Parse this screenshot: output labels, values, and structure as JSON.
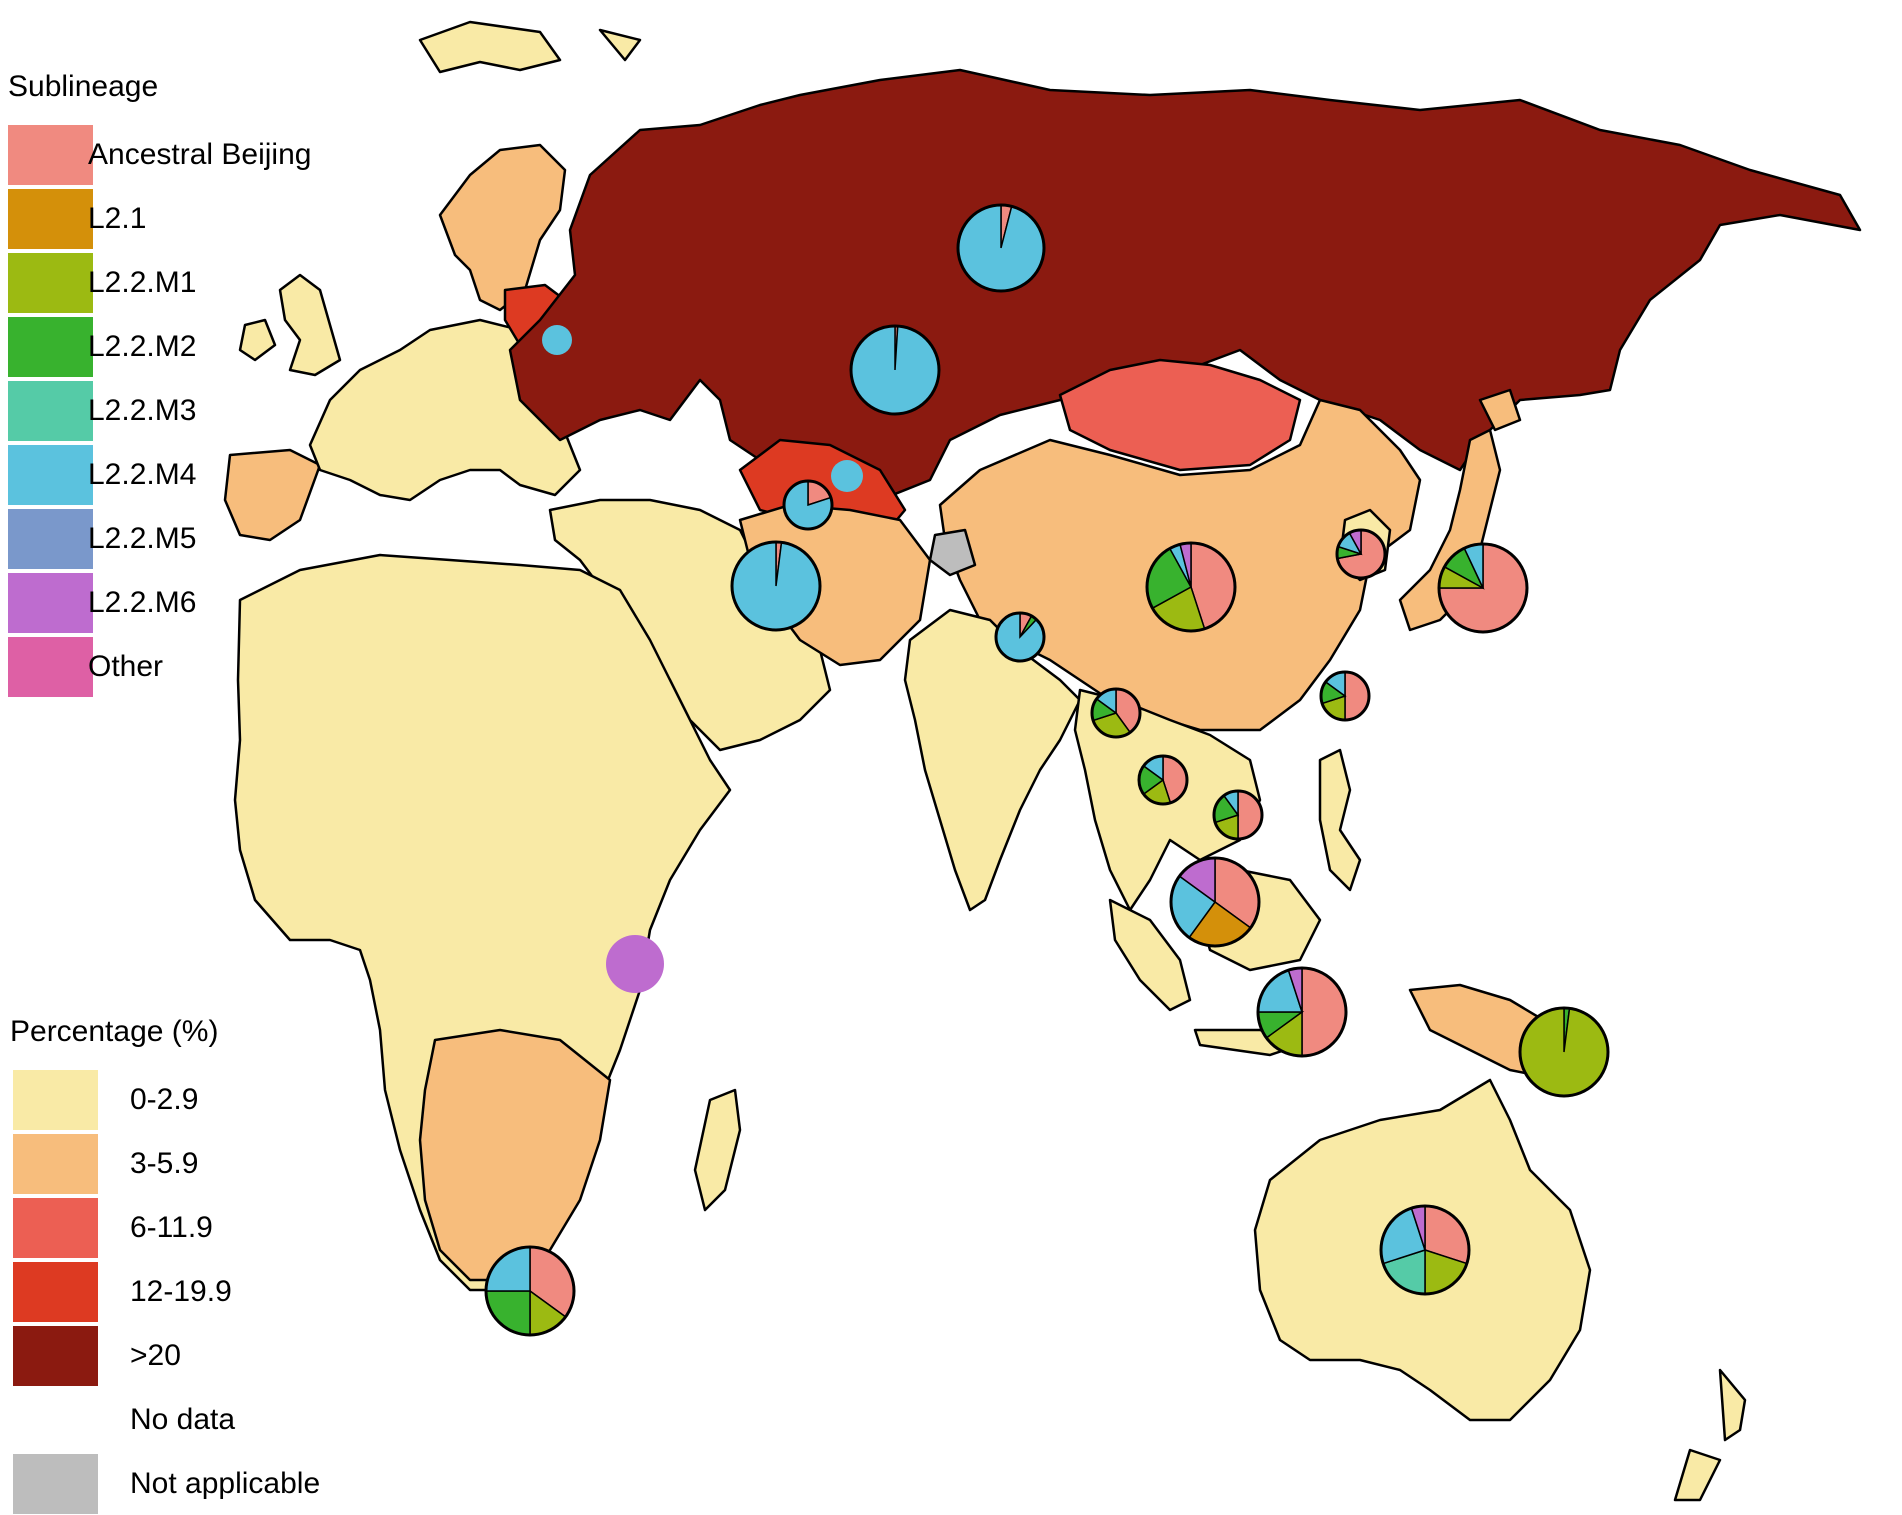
{
  "legend_sublineage": {
    "title": "Sublineage",
    "items": [
      {
        "label": "Ancestral Beijing",
        "color": "#f08a80"
      },
      {
        "label": "L2.1",
        "color": "#d4900a"
      },
      {
        "label": "L2.2.M1",
        "color": "#9cba12"
      },
      {
        "label": "L2.2.M2",
        "color": "#38b22e"
      },
      {
        "label": "L2.2.M3",
        "color": "#55cba7"
      },
      {
        "label": "L2.2.M4",
        "color": "#5bc2de"
      },
      {
        "label": "L2.2.M5",
        "color": "#7a98cb"
      },
      {
        "label": "L2.2.M6",
        "color": "#be6ccf"
      },
      {
        "label": "Other",
        "color": "#de60a5"
      }
    ]
  },
  "legend_percentage": {
    "title": "Percentage (%)",
    "items": [
      {
        "label": "0-2.9",
        "color": "#f9eaa6"
      },
      {
        "label": "3-5.9",
        "color": "#f7bd7c"
      },
      {
        "label": "6-11.9",
        "color": "#ec5f53"
      },
      {
        "label": "12-19.9",
        "color": "#dd3a22"
      },
      {
        "label": ">20",
        "color": "#8b1a10"
      },
      {
        "label": "No data",
        "color": "#ffffff"
      },
      {
        "label": "Not applicable",
        "color": "#bdbdbd"
      }
    ]
  },
  "map_colors": {
    "low": "#f9eaa6",
    "mid": "#f7bd7c",
    "high": "#ec5f53",
    "higher": "#dd3a22",
    "highest": "#8b1a10",
    "not_applicable": "#bdbdbd"
  },
  "pie_charts": [
    {
      "region": "russia",
      "slices": [
        {
          "s": "Ancestral Beijing",
          "v": 4
        },
        {
          "s": "L2.2.M4",
          "v": 96
        }
      ]
    },
    {
      "region": "kazakhstan",
      "slices": [
        {
          "s": "Ancestral Beijing",
          "v": 1
        },
        {
          "s": "L2.2.M4",
          "v": 99
        }
      ]
    },
    {
      "region": "belarus",
      "slices": [
        {
          "s": "L2.2.M4",
          "v": 100
        }
      ]
    },
    {
      "region": "uzbekistan",
      "slices": [
        {
          "s": "L2.2.M4",
          "v": 100
        }
      ]
    },
    {
      "region": "turkmenistan",
      "slices": [
        {
          "s": "Ancestral Beijing",
          "v": 20
        },
        {
          "s": "L2.2.M4",
          "v": 80
        }
      ]
    },
    {
      "region": "iran",
      "slices": [
        {
          "s": "Ancestral Beijing",
          "v": 2
        },
        {
          "s": "L2.2.M4",
          "v": 98
        }
      ]
    },
    {
      "region": "nepal",
      "slices": [
        {
          "s": "Ancestral Beijing",
          "v": 8
        },
        {
          "s": "L2.2.M2",
          "v": 4
        },
        {
          "s": "L2.2.M4",
          "v": 88
        }
      ]
    },
    {
      "region": "china",
      "slices": [
        {
          "s": "Ancestral Beijing",
          "v": 45
        },
        {
          "s": "L2.2.M1",
          "v": 22
        },
        {
          "s": "L2.2.M2",
          "v": 25
        },
        {
          "s": "L2.2.M4",
          "v": 4
        },
        {
          "s": "L2.2.M6",
          "v": 4
        }
      ]
    },
    {
      "region": "korea",
      "slices": [
        {
          "s": "Ancestral Beijing",
          "v": 72
        },
        {
          "s": "L2.2.M2",
          "v": 8
        },
        {
          "s": "L2.2.M4",
          "v": 12
        },
        {
          "s": "L2.2.M6",
          "v": 8
        }
      ]
    },
    {
      "region": "japan",
      "slices": [
        {
          "s": "Ancestral Beijing",
          "v": 75
        },
        {
          "s": "L2.2.M1",
          "v": 8
        },
        {
          "s": "L2.2.M2",
          "v": 10
        },
        {
          "s": "L2.2.M4",
          "v": 7
        }
      ]
    },
    {
      "region": "taiwan",
      "slices": [
        {
          "s": "Ancestral Beijing",
          "v": 50
        },
        {
          "s": "L2.2.M1",
          "v": 20
        },
        {
          "s": "L2.2.M2",
          "v": 15
        },
        {
          "s": "L2.2.M4",
          "v": 15
        }
      ]
    },
    {
      "region": "myanmar",
      "slices": [
        {
          "s": "Ancestral Beijing",
          "v": 40
        },
        {
          "s": "L2.2.M1",
          "v": 30
        },
        {
          "s": "L2.2.M2",
          "v": 15
        },
        {
          "s": "L2.2.M4",
          "v": 15
        }
      ]
    },
    {
      "region": "thailand",
      "slices": [
        {
          "s": "Ancestral Beijing",
          "v": 45
        },
        {
          "s": "L2.2.M1",
          "v": 20
        },
        {
          "s": "L2.2.M2",
          "v": 20
        },
        {
          "s": "L2.2.M4",
          "v": 15
        }
      ]
    },
    {
      "region": "vietnam",
      "slices": [
        {
          "s": "Ancestral Beijing",
          "v": 50
        },
        {
          "s": "L2.2.M1",
          "v": 20
        },
        {
          "s": "L2.2.M2",
          "v": 20
        },
        {
          "s": "L2.2.M4",
          "v": 10
        }
      ]
    },
    {
      "region": "malaysia",
      "slices": [
        {
          "s": "Ancestral Beijing",
          "v": 35
        },
        {
          "s": "L2.1",
          "v": 25
        },
        {
          "s": "L2.2.M4",
          "v": 25
        },
        {
          "s": "L2.2.M6",
          "v": 15
        }
      ]
    },
    {
      "region": "indonesia",
      "slices": [
        {
          "s": "Ancestral Beijing",
          "v": 50
        },
        {
          "s": "L2.2.M1",
          "v": 15
        },
        {
          "s": "L2.2.M2",
          "v": 10
        },
        {
          "s": "L2.2.M4",
          "v": 20
        },
        {
          "s": "L2.2.M6",
          "v": 5
        }
      ]
    },
    {
      "region": "papua-new-guinea",
      "slices": [
        {
          "s": "L2.2.M2",
          "v": 2
        },
        {
          "s": "L2.2.M1",
          "v": 98
        }
      ]
    },
    {
      "region": "kenya",
      "slices": [
        {
          "s": "L2.2.M6",
          "v": 100
        }
      ]
    },
    {
      "region": "south-africa",
      "slices": [
        {
          "s": "Ancestral Beijing",
          "v": 35
        },
        {
          "s": "L2.2.M1",
          "v": 15
        },
        {
          "s": "L2.2.M2",
          "v": 25
        },
        {
          "s": "L2.2.M4",
          "v": 25
        }
      ]
    },
    {
      "region": "australia",
      "slices": [
        {
          "s": "Ancestral Beijing",
          "v": 30
        },
        {
          "s": "L2.2.M1",
          "v": 20
        },
        {
          "s": "L2.2.M3",
          "v": 20
        },
        {
          "s": "L2.2.M4",
          "v": 25
        },
        {
          "s": "L2.2.M6",
          "v": 5
        }
      ]
    }
  ]
}
